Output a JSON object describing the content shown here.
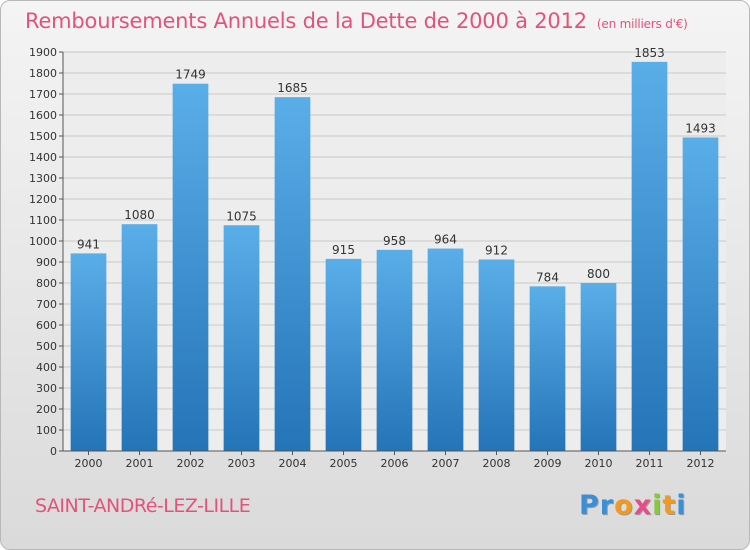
{
  "header": {
    "title": "Remboursements Annuels de la Dette de 2000 à 2012",
    "subtitle": "(en milliers d'€)"
  },
  "footer": {
    "city": "SAINT-ANDRé-LEZ-LILLE",
    "logo": [
      "P",
      "r",
      "o",
      "x",
      "i",
      "t",
      "i"
    ],
    "logo_colors": [
      "#3a8fd6",
      "#3a8fd6",
      "#f29a1f",
      "#e94b8a",
      "#8cc63f",
      "#f29a1f",
      "#3a8fd6"
    ]
  },
  "chart_data": {
    "type": "bar",
    "title": "Remboursements Annuels de la Dette de 2000 à 2012",
    "categories": [
      "2000",
      "2001",
      "2002",
      "2003",
      "2004",
      "2005",
      "2006",
      "2007",
      "2008",
      "2009",
      "2010",
      "2011",
      "2012"
    ],
    "values": [
      941,
      1080,
      1749,
      1075,
      1685,
      915,
      958,
      964,
      912,
      784,
      800,
      1853,
      1493
    ],
    "ylim": [
      0,
      1900
    ],
    "yticks": [
      0,
      100,
      200,
      300,
      400,
      500,
      600,
      700,
      800,
      900,
      1000,
      1100,
      1200,
      1300,
      1400,
      1500,
      1600,
      1700,
      1800,
      1900
    ],
    "grid": true,
    "bar_color_top": "#5aaee8",
    "bar_color_bottom": "#2474b8",
    "xlabel": "",
    "ylabel": ""
  }
}
